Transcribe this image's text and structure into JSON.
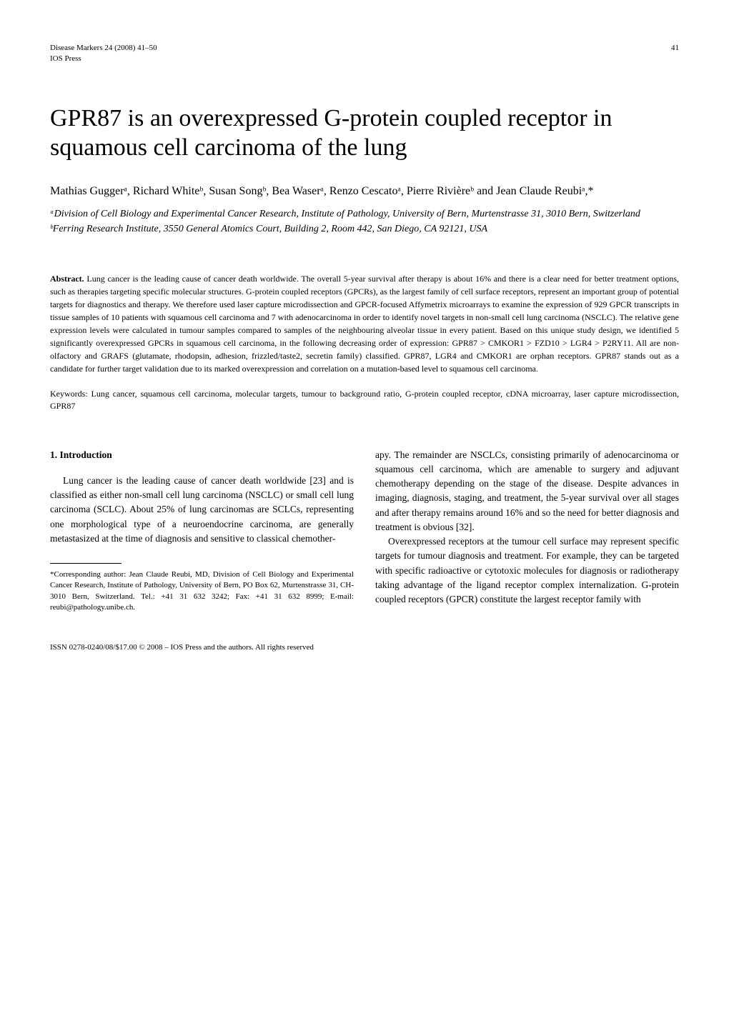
{
  "header": {
    "journal": "Disease Markers 24 (2008) 41–50",
    "publisher": "IOS Press",
    "page_number": "41"
  },
  "title": "GPR87 is an overexpressed G-protein coupled receptor in squamous cell carcinoma of the lung",
  "authors_line": "Mathias Guggerᵃ, Richard Whiteᵇ, Susan Songᵇ, Bea Waserᵃ, Renzo Cescatoᵃ, Pierre Rivièreᵇ and Jean Claude Reubiᵃ,*",
  "affiliations": {
    "a": "ᵃDivision of Cell Biology and Experimental Cancer Research, Institute of Pathology, University of Bern, Murtenstrasse 31, 3010 Bern, Switzerland",
    "b": "ᵇFerring Research Institute, 3550 General Atomics Court, Building 2, Room 442, San Diego, CA 92121, USA"
  },
  "abstract": {
    "label": "Abstract.",
    "text": "Lung cancer is the leading cause of cancer death worldwide. The overall 5-year survival after therapy is about 16% and there is a clear need for better treatment options, such as therapies targeting specific molecular structures. G-protein coupled receptors (GPCRs), as the largest family of cell surface receptors, represent an important group of potential targets for diagnostics and therapy. We therefore used laser capture microdissection and GPCR-focused Affymetrix microarrays to examine the expression of 929 GPCR transcripts in tissue samples of 10 patients with squamous cell carcinoma and 7 with adenocarcinoma in order to identify novel targets in non-small cell lung carcinoma (NSCLC). The relative gene expression levels were calculated in tumour samples compared to samples of the neighbouring alveolar tissue in every patient. Based on this unique study design, we identified 5 significantly overexpressed GPCRs in squamous cell carcinoma, in the following decreasing order of expression: GPR87 > CMKOR1 > FZD10 > LGR4 > P2RY11. All are non-olfactory and GRAFS (glutamate, rhodopsin, adhesion, frizzled/taste2, secretin family) classified. GPR87, LGR4 and CMKOR1 are orphan receptors. GPR87 stands out as a candidate for further target validation due to its marked overexpression and correlation on a mutation-based level to squamous cell carcinoma."
  },
  "keywords": {
    "label": "Keywords:",
    "text": "Lung cancer, squamous cell carcinoma, molecular targets, tumour to background ratio, G-protein coupled receptor, cDNA microarray, laser capture microdissection, GPR87"
  },
  "section": {
    "heading": "1. Introduction",
    "col1_p1": "Lung cancer is the leading cause of cancer death worldwide [23] and is classified as either non-small cell lung carcinoma (NSCLC) or small cell lung carcinoma (SCLC). About 25% of lung carcinomas are SCLCs, representing one morphological type of a neuroendocrine carcinoma, are generally metastasized at the time of diagnosis and sensitive to classical chemother-",
    "col2_p1": "apy. The remainder are NSCLCs, consisting primarily of adenocarcinoma or squamous cell carcinoma, which are amenable to surgery and adjuvant chemotherapy depending on the stage of the disease. Despite advances in imaging, diagnosis, staging, and treatment, the 5-year survival over all stages and after therapy remains around 16% and so the need for better diagnosis and treatment is obvious [32].",
    "col2_p2": "Overexpressed receptors at the tumour cell surface may represent specific targets for tumour diagnosis and treatment. For example, they can be targeted with specific radioactive or cytotoxic molecules for diagnosis or radiotherapy taking advantage of the ligand receptor complex internalization. G-protein coupled receptors (GPCR) constitute the largest receptor family with"
  },
  "footnote": "*Corresponding author: Jean Claude Reubi, MD, Division of Cell Biology and Experimental Cancer Research, Institute of Pathology, University of Bern, PO Box 62, Murtenstrasse 31, CH-3010 Bern, Switzerland. Tel.: +41 31 632 3242; Fax: +41 31 632 8999; E-mail: reubi@pathology.unibe.ch.",
  "footer": "ISSN 0278-0240/08/$17.00 © 2008 – IOS Press and the authors. All rights reserved"
}
